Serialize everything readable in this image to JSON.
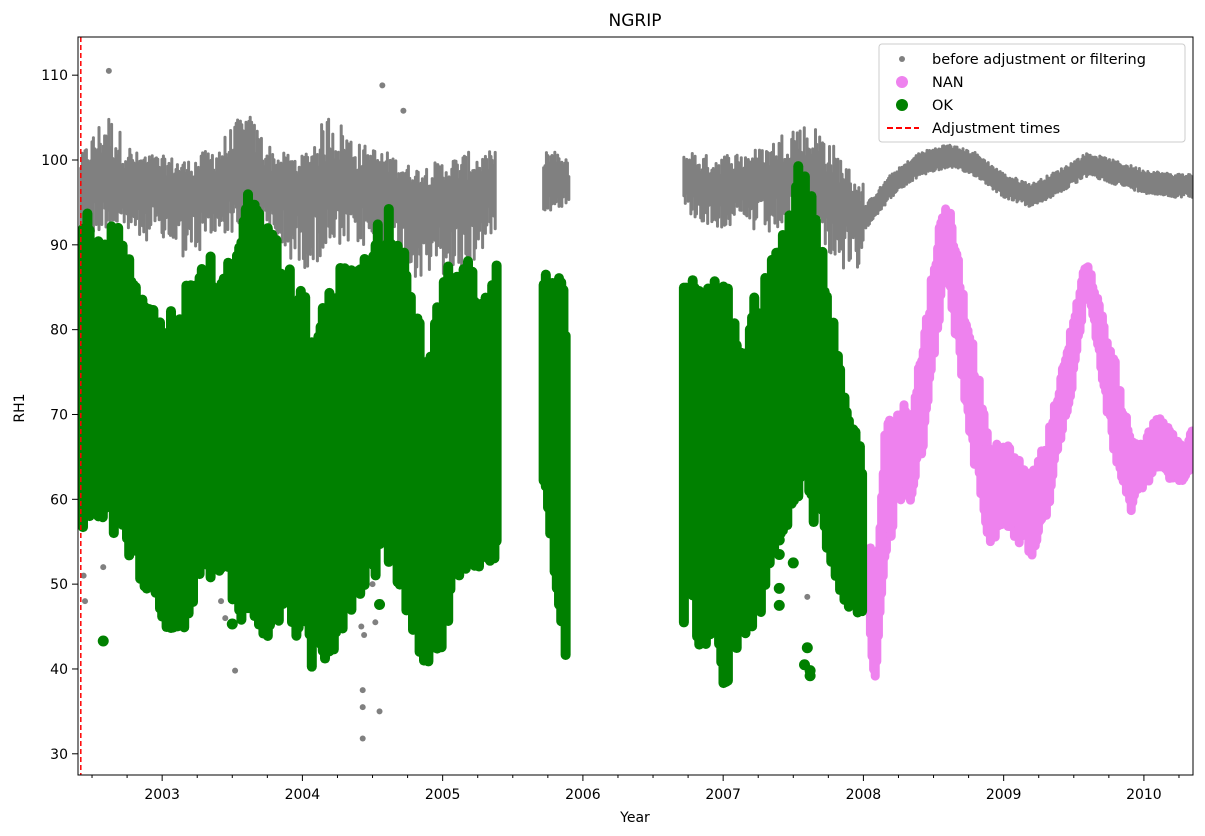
{
  "chart_data": {
    "type": "scatter",
    "title": "NGRIP",
    "xlabel": "Year",
    "ylabel": "RH1",
    "xlim": [
      2002.4,
      2010.35
    ],
    "ylim": [
      27.5,
      114.5
    ],
    "x_ticks": [
      2003,
      2004,
      2005,
      2006,
      2007,
      2008,
      2009,
      2010
    ],
    "x_tick_labels": [
      "2003",
      "2004",
      "2005",
      "2006",
      "2007",
      "2008",
      "2009",
      "2010"
    ],
    "y_ticks": [
      30,
      40,
      50,
      60,
      70,
      80,
      90,
      100,
      110
    ],
    "y_tick_labels": [
      "30",
      "40",
      "50",
      "60",
      "70",
      "80",
      "90",
      "100",
      "110"
    ],
    "grid": false,
    "legend_position": "top-right",
    "colors": {
      "before": "#808080",
      "nan": "#ee82ee",
      "ok": "#008000",
      "adjust": "#ff0000"
    },
    "series": [
      {
        "name": "before adjustment or filtering",
        "marker": "small-dot",
        "segments": [
          {
            "x": [
              2002.42,
              2002.6,
              2002.8,
              2003.0,
              2003.2,
              2003.4,
              2003.6,
              2003.8,
              2004.0,
              2004.2,
              2004.4,
              2004.6,
              2004.8,
              2005.0,
              2005.2,
              2005.38
            ],
            "y_mean": [
              97.5,
              97.5,
              97,
              97,
              96.5,
              97,
              97.5,
              97,
              96.5,
              97,
              97,
              97,
              96,
              95.5,
              96,
              96.5
            ],
            "y_low": [
              90,
              92,
              91,
              90,
              88,
              91,
              92,
              90,
              87,
              89,
              90,
              88,
              86,
              86,
              87,
              92
            ],
            "y_high": [
              100.5,
              106,
              101,
              100.5,
              100,
              102,
              106,
              101,
              100.5,
              106,
              102,
              101,
              99,
              100,
              101,
              101
            ]
          },
          {
            "x": [
              2005.72,
              2005.8,
              2005.9
            ],
            "y_mean": [
              98,
              98,
              97
            ],
            "y_low": [
              94,
              94,
              95
            ],
            "y_high": [
              101.5,
              101,
              100
            ]
          },
          {
            "x": [
              2006.72,
              2006.9,
              2007.1,
              2007.3,
              2007.5,
              2007.7,
              2007.9,
              2008.0
            ],
            "y_mean": [
              97.5,
              97,
              97,
              97.5,
              98,
              96.5,
              95,
              93
            ],
            "y_low": [
              94,
              92,
              92,
              91,
              92,
              90,
              86,
              86
            ],
            "y_high": [
              101.5,
              100.5,
              101,
              101.5,
              104.5,
              104,
              99,
              97.5
            ]
          }
        ],
        "outliers": [
          [
            2002.62,
            110.5
          ],
          [
            2004.57,
            108.8
          ],
          [
            2004.72,
            105.8
          ],
          [
            2004.43,
            31.8
          ],
          [
            2004.43,
            35.5
          ],
          [
            2004.43,
            37.5
          ],
          [
            2004.55,
            35
          ],
          [
            2003.52,
            39.8
          ],
          [
            2002.45,
            48
          ],
          [
            2002.44,
            51
          ],
          [
            2002.58,
            52
          ],
          [
            2003.42,
            48
          ],
          [
            2003.45,
            46
          ],
          [
            2004.42,
            45
          ],
          [
            2004.44,
            44
          ],
          [
            2004.52,
            45.5
          ],
          [
            2007.6,
            48.5
          ],
          [
            2004.5,
            50
          ]
        ]
      },
      {
        "name": "NAN",
        "marker": "dot",
        "x": [
          2008.05,
          2008.08,
          2008.15,
          2008.25,
          2008.35,
          2008.45,
          2008.52,
          2008.58,
          2008.63,
          2008.7,
          2008.8,
          2008.9,
          2009.0,
          2009.1,
          2009.2,
          2009.3,
          2009.4,
          2009.5,
          2009.58,
          2009.62,
          2009.7,
          2009.8,
          2009.9,
          2010.0,
          2010.1,
          2010.2,
          2010.3,
          2010.35
        ],
        "y": [
          50,
          42,
          60,
          65,
          66,
          75,
          85,
          90,
          88,
          80,
          70,
          60,
          62,
          60,
          58,
          62,
          70,
          78,
          86,
          85,
          78,
          70,
          63,
          64,
          67,
          65,
          64,
          67
        ],
        "spread": [
          8,
          4,
          9,
          6,
          6,
          7,
          6,
          5,
          6,
          6,
          7,
          6,
          5,
          5,
          5,
          5,
          4,
          4,
          2,
          2,
          4,
          6,
          5,
          3,
          3,
          3,
          2,
          2
        ]
      },
      {
        "name": "OK",
        "marker": "dot",
        "segments": [
          {
            "x": [
              2002.42,
              2002.55,
              2002.7,
              2002.85,
              2003.0,
              2003.15,
              2003.3,
              2003.45,
              2003.6,
              2003.75,
              2003.9,
              2004.05,
              2004.2,
              2004.35,
              2004.5,
              2004.6,
              2004.75,
              2004.9,
              2005.0,
              2005.1,
              2005.2,
              2005.3,
              2005.4
            ],
            "y_low": [
              55,
              58,
              55,
              50,
              45,
              44,
              52,
              48,
              45,
              43,
              46,
              39,
              41,
              47,
              50,
              53,
              46,
              39,
              42,
              50,
              52,
              52,
              52
            ],
            "y_high": [
              95,
              93,
              92,
              85,
              82,
              85,
              90,
              88,
              97,
              93,
              88,
              83,
              85,
              90,
              93,
              95,
              88,
              76,
              88,
              90,
              88,
              85,
              91
            ]
          },
          {
            "x": [
              2005.72,
              2005.8,
              2005.88
            ],
            "y_low": [
              60,
              50,
              38
            ],
            "y_high": [
              88,
              87,
              85
            ]
          },
          {
            "x": [
              2006.72,
              2006.85,
              2007.0,
              2007.1,
              2007.25,
              2007.4,
              2007.55,
              2007.7,
              2007.85,
              2008.0
            ],
            "y_low": [
              45,
              42,
              37,
              40,
              45,
              55,
              60,
              55,
              48,
              45
            ],
            "y_high": [
              88,
              84,
              88,
              80,
              85,
              90,
              101,
              92,
              75,
              65
            ]
          }
        ],
        "outliers": [
          [
            2002.58,
            43.3
          ],
          [
            2003.5,
            45.3
          ],
          [
            2004.55,
            47.6
          ],
          [
            2003.7,
            58.2
          ],
          [
            2003.7,
            61
          ],
          [
            2007.5,
            60.5
          ],
          [
            2007.6,
            42.5
          ],
          [
            2007.58,
            40.5
          ],
          [
            2007.62,
            39.2
          ],
          [
            2007.62,
            39.8
          ],
          [
            2007.4,
            53.5
          ],
          [
            2007.4,
            55.2
          ],
          [
            2007.4,
            47.5
          ],
          [
            2007.4,
            49.5
          ],
          [
            2007.5,
            52.5
          ]
        ]
      },
      {
        "name": "Adjustment times",
        "marker": "dashed-vline",
        "x": [
          2002.42
        ]
      }
    ]
  }
}
